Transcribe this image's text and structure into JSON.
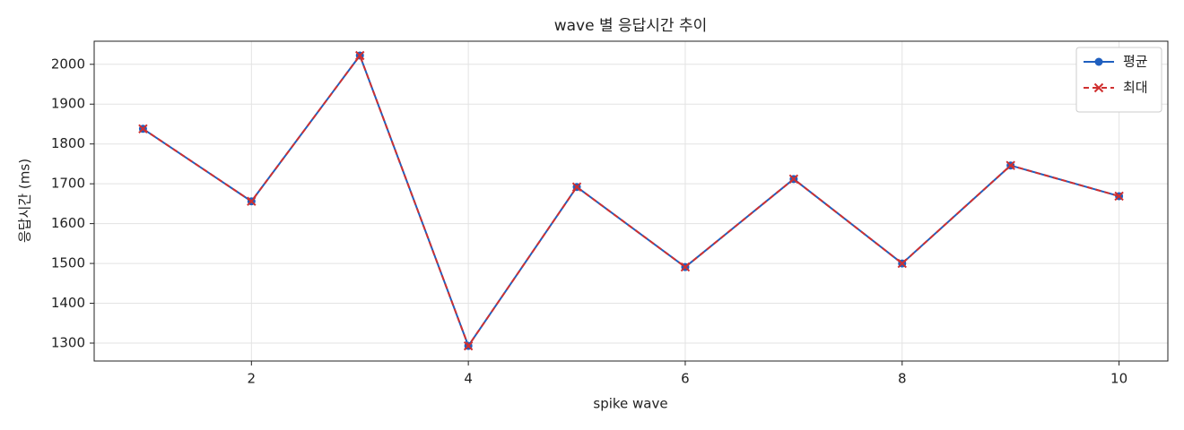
{
  "chart_data": {
    "type": "line",
    "title": "wave 별 응답시간 추이",
    "xlabel": "spike wave",
    "ylabel": "응답시간 (ms)",
    "x": [
      1,
      2,
      3,
      4,
      5,
      6,
      7,
      8,
      9,
      10
    ],
    "series": [
      {
        "name": "평균",
        "color": "#1f5fbf",
        "marker": "o",
        "linestyle": "solid",
        "values": [
          1838,
          1656,
          2022,
          1293,
          1692,
          1491,
          1712,
          1500,
          1746,
          1669
        ]
      },
      {
        "name": "최대",
        "color": "#d03030",
        "marker": "x",
        "linestyle": "dashed",
        "values": [
          1838,
          1656,
          2022,
          1293,
          1692,
          1491,
          1712,
          1500,
          1746,
          1669
        ]
      }
    ],
    "xlim": [
      0.55,
      10.45
    ],
    "xticks": [
      2,
      4,
      6,
      8,
      10
    ],
    "ylim": [
      1255,
      2058
    ],
    "yticks": [
      1300,
      1400,
      1500,
      1600,
      1700,
      1800,
      1900,
      2000
    ],
    "grid": true,
    "legend": "upper right"
  }
}
